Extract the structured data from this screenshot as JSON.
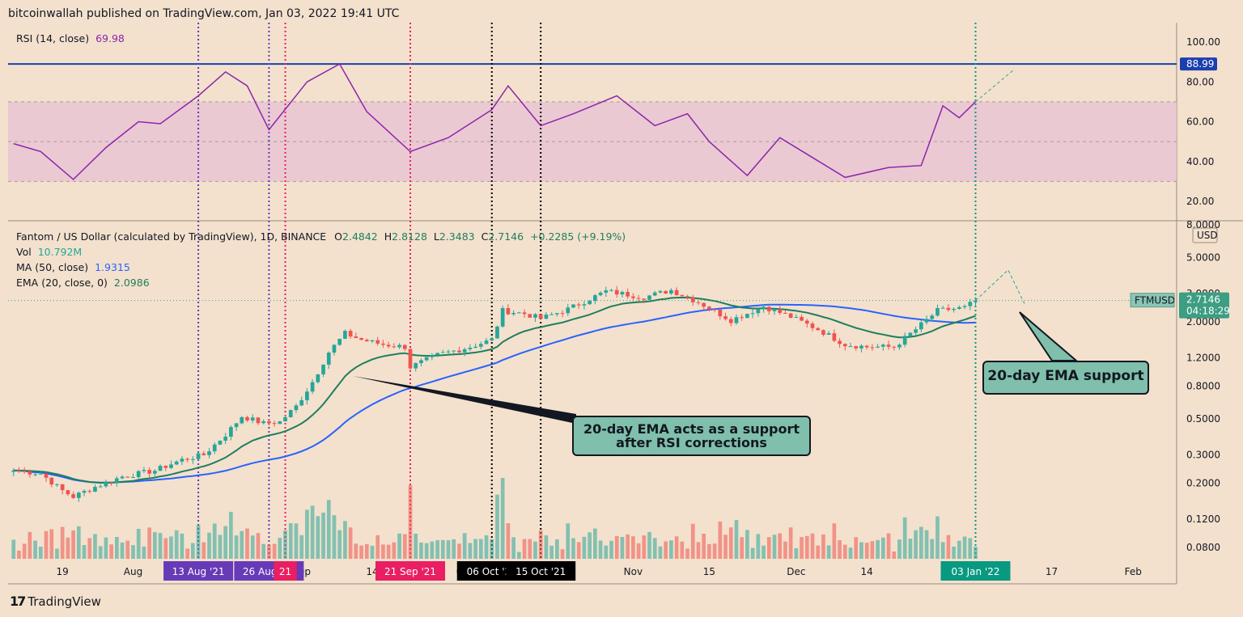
{
  "header": {
    "publisher": "bitcoinwallah published on TradingView.com, Jan 03, 2022 19:41 UTC"
  },
  "rsi_legend": {
    "label": "RSI (14, close)",
    "value": "69.98"
  },
  "price_legend": {
    "title": "Fantom / US Dollar (calculated by TradingView), 1D, BINANCE",
    "o_lbl": "O",
    "o": "2.4842",
    "h_lbl": "H",
    "h": "2.8128",
    "l_lbl": "L",
    "l": "2.3483",
    "c_lbl": "C",
    "c": "2.7146",
    "chg": "+0.2285 (+9.19%)"
  },
  "vol_legend": {
    "label": "Vol",
    "value": "10.792M"
  },
  "ma_legend": {
    "label": "MA (50, close)",
    "value": "1.9315"
  },
  "ema_legend": {
    "label": "EMA (20, close, 0)",
    "value": "2.0986"
  },
  "price_axis": {
    "currency": "USD",
    "symbol": "FTMUSD",
    "last": "2.7146",
    "countdown": "04:18:29"
  },
  "rsi_axis": {
    "marker": "88.99"
  },
  "callouts": {
    "ema_support_1": "20-day EMA acts as a support",
    "ema_support_2": "after RSI corrections",
    "ema_support_right": "20-day EMA support"
  },
  "footer": {
    "brand": "TradingView"
  },
  "colors": {
    "bg": "#f3e1cd",
    "up": "#26a69a",
    "down": "#ef5350",
    "ma": "#2962ff",
    "ema": "#1e7e5e",
    "rsi": "#8e24aa",
    "band": "#e8c4d4"
  },
  "chart_data": {
    "type": "candlestick",
    "symbol": "FTMUSD",
    "timeframe": "1D",
    "y_scale": "log",
    "y_ticks": [
      "8.0000",
      "5.0000",
      "3.0000",
      "2.0000",
      "1.2000",
      "0.8000",
      "0.5000",
      "0.3000",
      "0.2000",
      "0.1200",
      "0.0800"
    ],
    "x_ticks": [
      "19",
      "Aug",
      "Sep",
      "14",
      "Oct",
      "Nov",
      "15",
      "Dec",
      "14",
      "17",
      "Feb"
    ],
    "rsi_ticks": [
      "100.00",
      "80.00",
      "60.00",
      "40.00",
      "20.00"
    ],
    "event_labels": [
      "13 Aug '21",
      "26 Aug '21",
      "21",
      "21 Sep '21",
      "06 Oct '21",
      "15 Oct '21",
      "03 Jan '22"
    ],
    "event_colors": [
      "#673ab7",
      "#673ab7",
      "#e91e63",
      "#e91e63",
      "#000000",
      "#000000",
      "#089981"
    ],
    "rsi_level": 88.99,
    "close_points": [
      {
        "d": "2021-07-10",
        "c": 0.24
      },
      {
        "d": "2021-07-15",
        "c": 0.23
      },
      {
        "d": "2021-07-19",
        "c": 0.18
      },
      {
        "d": "2021-07-21",
        "c": 0.165
      },
      {
        "d": "2021-07-25",
        "c": 0.19
      },
      {
        "d": "2021-07-30",
        "c": 0.22
      },
      {
        "d": "2021-08-05",
        "c": 0.24
      },
      {
        "d": "2021-08-10",
        "c": 0.28
      },
      {
        "d": "2021-08-14",
        "c": 0.3
      },
      {
        "d": "2021-08-18",
        "c": 0.4
      },
      {
        "d": "2021-08-21",
        "c": 0.52
      },
      {
        "d": "2021-08-25",
        "c": 0.47
      },
      {
        "d": "2021-08-28",
        "c": 0.48
      },
      {
        "d": "2021-08-31",
        "c": 0.6
      },
      {
        "d": "2021-09-03",
        "c": 0.85
      },
      {
        "d": "2021-09-06",
        "c": 1.3
      },
      {
        "d": "2021-09-09",
        "c": 1.7
      },
      {
        "d": "2021-09-12",
        "c": 1.55
      },
      {
        "d": "2021-09-16",
        "c": 1.45
      },
      {
        "d": "2021-09-20",
        "c": 1.4
      },
      {
        "d": "2021-09-21",
        "c": 1.05
      },
      {
        "d": "2021-09-26",
        "c": 1.25
      },
      {
        "d": "2021-10-02",
        "c": 1.4
      },
      {
        "d": "2021-10-06",
        "c": 1.55
      },
      {
        "d": "2021-10-08",
        "c": 2.35
      },
      {
        "d": "2021-10-12",
        "c": 2.25
      },
      {
        "d": "2021-10-15",
        "c": 2.1
      },
      {
        "d": "2021-10-20",
        "c": 2.4
      },
      {
        "d": "2021-10-27",
        "c": 3.1
      },
      {
        "d": "2021-11-03",
        "c": 2.85
      },
      {
        "d": "2021-11-08",
        "c": 3.15
      },
      {
        "d": "2021-11-13",
        "c": 2.65
      },
      {
        "d": "2021-11-19",
        "c": 2.05
      },
      {
        "d": "2021-11-25",
        "c": 2.5
      },
      {
        "d": "2021-11-30",
        "c": 2.15
      },
      {
        "d": "2021-12-05",
        "c": 1.8
      },
      {
        "d": "2021-12-10",
        "c": 1.45
      },
      {
        "d": "2021-12-14",
        "c": 1.4
      },
      {
        "d": "2021-12-19",
        "c": 1.4
      },
      {
        "d": "2021-12-23",
        "c": 1.8
      },
      {
        "d": "2021-12-27",
        "c": 2.35
      },
      {
        "d": "2022-01-01",
        "c": 2.45
      },
      {
        "d": "2022-01-03",
        "c": 2.7146
      }
    ],
    "rsi_points": [
      {
        "d": "2021-07-10",
        "v": 49
      },
      {
        "d": "2021-07-15",
        "v": 45
      },
      {
        "d": "2021-07-21",
        "v": 31
      },
      {
        "d": "2021-07-27",
        "v": 47
      },
      {
        "d": "2021-08-02",
        "v": 60
      },
      {
        "d": "2021-08-06",
        "v": 59
      },
      {
        "d": "2021-08-13",
        "v": 73
      },
      {
        "d": "2021-08-18",
        "v": 85
      },
      {
        "d": "2021-08-22",
        "v": 78
      },
      {
        "d": "2021-08-26",
        "v": 56
      },
      {
        "d": "2021-09-02",
        "v": 80
      },
      {
        "d": "2021-09-08",
        "v": 89
      },
      {
        "d": "2021-09-13",
        "v": 65
      },
      {
        "d": "2021-09-21",
        "v": 45
      },
      {
        "d": "2021-09-28",
        "v": 52
      },
      {
        "d": "2021-10-06",
        "v": 66
      },
      {
        "d": "2021-10-09",
        "v": 78
      },
      {
        "d": "2021-10-15",
        "v": 58
      },
      {
        "d": "2021-10-21",
        "v": 64
      },
      {
        "d": "2021-10-29",
        "v": 73
      },
      {
        "d": "2021-11-05",
        "v": 58
      },
      {
        "d": "2021-11-11",
        "v": 64
      },
      {
        "d": "2021-11-15",
        "v": 50
      },
      {
        "d": "2021-11-22",
        "v": 33
      },
      {
        "d": "2021-11-28",
        "v": 52
      },
      {
        "d": "2021-12-04",
        "v": 42
      },
      {
        "d": "2021-12-10",
        "v": 32
      },
      {
        "d": "2021-12-18",
        "v": 37
      },
      {
        "d": "2021-12-24",
        "v": 38
      },
      {
        "d": "2021-12-28",
        "v": 68
      },
      {
        "d": "2021-12-31",
        "v": 62
      },
      {
        "d": "2022-01-03",
        "v": 69.98
      }
    ]
  }
}
